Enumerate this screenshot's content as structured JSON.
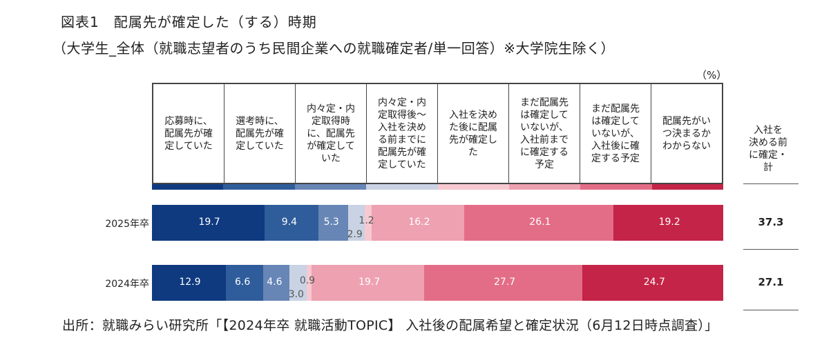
{
  "title": "図表1　配属先が確定した（する）時期",
  "subtitle": "（大学生_全体（就職志望者のうち民間企業への就職確定者/単一回答）※大学院生除く）",
  "unit": "（%）",
  "source": "出所：就職みらい研究所「【2024年卒 就職活動TOPIC】 入社後の配属希望と確定状況（6月12日時点調査）」",
  "colors": [
    "#0f3a80",
    "#2f5c9b",
    "#6786b6",
    "#c9d3e4",
    "#f6c9d1",
    "#eda1b1",
    "#e36d87",
    "#c42447"
  ],
  "chart_data": {
    "type": "bar",
    "stacked": true,
    "orientation": "horizontal",
    "categories": [
      "応募時に、\n配属先が確\n定していた",
      "選考時に、\n配属先が確\n定していた",
      "内々定・内\n定取得時\nに、配属先\nが確定して\nいた",
      "内々定・内\n定取得後～\n入社を決め\nる前までに\n配属先が確\n定していた",
      "入社を決め\nた後に配属\n先が確定し\nた",
      "まだ配属先\nは確定して\nいないが、\n入社前まで\nに確定する\n予定",
      "まだ配属先\nは確定して\nいないが、\n入社後に確\n定する予定",
      "配属先がい\nつ決まるか\nわからない"
    ],
    "total_header": "入社を\n決める前\nに確定・\n計",
    "rows": [
      {
        "label": "2025年卒",
        "values": [
          19.7,
          9.4,
          5.3,
          2.9,
          1.2,
          16.2,
          26.1,
          19.2
        ],
        "total": "37.3"
      },
      {
        "label": "2024年卒",
        "values": [
          12.9,
          6.6,
          4.6,
          3.0,
          0.9,
          19.7,
          27.7,
          24.7
        ],
        "total": "27.1"
      }
    ],
    "xlim": [
      0,
      100
    ]
  }
}
